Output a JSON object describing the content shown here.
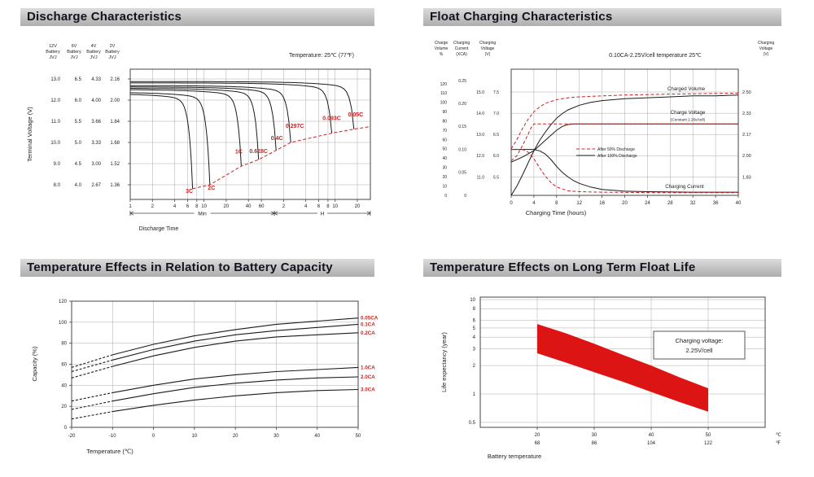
{
  "panels": [
    {
      "title": "Discharge Characteristics"
    },
    {
      "title": "Float Charging Characteristics"
    },
    {
      "title": "Temperature Effects in Relation to Battery Capacity"
    },
    {
      "title": "Temperature Effects on Long Term Float Life"
    }
  ],
  "chart_data": [
    {
      "id": "discharge-characteristics",
      "type": "line",
      "title": "Discharge Characteristics",
      "note": "Temperature: 25℃ (77℉)",
      "xlabel": "Discharge Time",
      "ylabel": "Terminal Voltage (V)",
      "x_scale": "log",
      "x_ticks_minutes": [
        1,
        2,
        4,
        6,
        8,
        10,
        20,
        40,
        60
      ],
      "x_ticks_hours": [
        2,
        4,
        6,
        8,
        10,
        20
      ],
      "x_span_labels": [
        "Min",
        "H"
      ],
      "y_axes": [
        {
          "header": [
            "12V",
            "Battery",
            "JVJ"
          ],
          "ticks": [
            "13.0",
            "12.0",
            "11.0",
            "10.0",
            "9.0",
            "8.0"
          ]
        },
        {
          "header": [
            "6V",
            "Battery",
            "JVJ"
          ],
          "ticks": [
            "6.5",
            "6.0",
            "5.5",
            "5.0",
            "4.5",
            "4.0"
          ]
        },
        {
          "header": [
            "4V",
            "Battery",
            "JVJ"
          ],
          "ticks": [
            "4.33",
            "4.00",
            "3.66",
            "3.33",
            "3.00",
            "2.67"
          ]
        },
        {
          "header": [
            "2V",
            "Battery",
            "JVJ"
          ],
          "ticks": [
            "2.16",
            "2.00",
            "1.84",
            "1.68",
            "1.52",
            "1.36"
          ]
        }
      ],
      "cell_tick_values": [
        2.16,
        2.0,
        1.84,
        1.68,
        1.52,
        1.36
      ],
      "series": [
        {
          "label": "3C",
          "end_minutes": 7,
          "end_v": 1.33,
          "start_v": 2.05
        },
        {
          "label": "2C",
          "end_minutes": 12,
          "end_v": 1.36,
          "start_v": 2.06
        },
        {
          "label": "1C",
          "end_minutes": 32,
          "end_v": 1.5,
          "start_v": 2.08
        },
        {
          "label": "0.628C",
          "end_minutes": 55,
          "end_v": 1.55,
          "start_v": 2.09
        },
        {
          "label": "0.4C",
          "end_minutes": 95,
          "end_v": 1.62,
          "start_v": 2.1
        },
        {
          "label": "0.297C",
          "end_minutes": 150,
          "end_v": 1.68,
          "start_v": 2.11
        },
        {
          "label": "0.093C",
          "end_minutes": 540,
          "end_v": 1.75,
          "start_v": 2.13
        },
        {
          "label": "0.05C",
          "end_minutes": 1080,
          "end_v": 1.78,
          "start_v": 2.14
        }
      ],
      "cutoff_locus_end_v": 1.8,
      "series_color": "#1a1a1a",
      "locus_color": "#cc2222"
    },
    {
      "id": "float-charging-characteristics",
      "type": "line",
      "title": "Float Charging Characteristics",
      "condition": "0.10CA-2.25V/cell  temperature 25℃",
      "xlabel": "Charging Time (hours)",
      "x_ticks": [
        0,
        4,
        8,
        12,
        16,
        20,
        24,
        28,
        32,
        36,
        40
      ],
      "left_axes": [
        {
          "header": [
            "Charge",
            "Volume",
            "%"
          ],
          "ticks": [
            120,
            110,
            100,
            90,
            80,
            70,
            60,
            50,
            40,
            30,
            20,
            10,
            0
          ]
        },
        {
          "header": [
            "Charging",
            "Current",
            "(XCA)"
          ],
          "ticks": [
            "0.25",
            "0.20",
            "0.15",
            "0.10",
            "0.05",
            "0"
          ]
        },
        {
          "header": [
            "Charging",
            "Voltage",
            "(V)"
          ],
          "ticks_12v": [
            "15.0",
            "14.0",
            "13.0",
            "12.0",
            "11.0"
          ],
          "ticks_6v": [
            "7.5",
            "7.0",
            "6.5",
            "6.0",
            "5.5"
          ]
        }
      ],
      "right_axis": {
        "header": [
          "Charging",
          "Voltage",
          "(V)"
        ],
        "ticks": [
          "2.50",
          "2.33",
          "2.17",
          "2.00",
          "1.83"
        ],
        "tick_values": [
          2.5,
          2.333,
          2.167,
          2.0,
          1.833
        ]
      },
      "legend": [
        {
          "label": "After  50% Discharge",
          "style": "dashed",
          "color": "#cc2222"
        },
        {
          "label": "After 100% Discharge",
          "style": "solid",
          "color": "#1a1a1a"
        }
      ],
      "curve_labels": {
        "charged_volume": "Charged Volume",
        "charge_voltage": "Charge Voltage",
        "charge_voltage_sub": "(Constant 2.25v/cell)",
        "charging_current": "Charging Current"
      },
      "series": [
        {
          "name": "charged-volume-after-100",
          "axis": "volume",
          "style": "solid",
          "points": [
            [
              0,
              0
            ],
            [
              1,
              10
            ],
            [
              2,
              22
            ],
            [
              3,
              35
            ],
            [
              4,
              48
            ],
            [
              5,
              59
            ],
            [
              6,
              68
            ],
            [
              7,
              76
            ],
            [
              8,
              83
            ],
            [
              9,
              88
            ],
            [
              10,
              92
            ],
            [
              12,
              97
            ],
            [
              14,
              100
            ],
            [
              16,
              102
            ],
            [
              20,
              104
            ],
            [
              24,
              105
            ],
            [
              28,
              106
            ],
            [
              32,
              107
            ],
            [
              36,
              107
            ],
            [
              40,
              108
            ]
          ]
        },
        {
          "name": "charged-volume-after-50",
          "axis": "volume",
          "style": "dashed",
          "points": [
            [
              0,
              50
            ],
            [
              1,
              60
            ],
            [
              2,
              72
            ],
            [
              3,
              82
            ],
            [
              4,
              90
            ],
            [
              5,
              95
            ],
            [
              6,
              99
            ],
            [
              8,
              103
            ],
            [
              10,
              105
            ],
            [
              12,
              106
            ],
            [
              16,
              107
            ],
            [
              20,
              108
            ],
            [
              28,
              109
            ],
            [
              40,
              110
            ]
          ]
        },
        {
          "name": "charge-voltage-after-100",
          "axis": "voltage",
          "style": "solid",
          "points": [
            [
              0,
              1.95
            ],
            [
              2,
              1.99
            ],
            [
              4,
              2.04
            ],
            [
              5,
              2.08
            ],
            [
              6,
              2.12
            ],
            [
              7,
              2.16
            ],
            [
              8,
              2.2
            ],
            [
              9,
              2.23
            ],
            [
              10,
              2.245
            ],
            [
              11,
              2.25
            ],
            [
              40,
              2.25
            ]
          ]
        },
        {
          "name": "charge-voltage-after-50",
          "axis": "voltage",
          "style": "dashed",
          "points": [
            [
              0,
              1.96
            ],
            [
              1,
              2.0
            ],
            [
              2,
              2.08
            ],
            [
              3,
              2.17
            ],
            [
              3.5,
              2.22
            ],
            [
              4,
              2.25
            ],
            [
              40,
              2.25
            ]
          ]
        },
        {
          "name": "charging-current-after-100",
          "axis": "current",
          "style": "solid",
          "points": [
            [
              0,
              0.1
            ],
            [
              4,
              0.1
            ],
            [
              5,
              0.097
            ],
            [
              6,
              0.09
            ],
            [
              7,
              0.078
            ],
            [
              8,
              0.063
            ],
            [
              9,
              0.05
            ],
            [
              10,
              0.04
            ],
            [
              11,
              0.032
            ],
            [
              12,
              0.026
            ],
            [
              14,
              0.018
            ],
            [
              16,
              0.013
            ],
            [
              20,
              0.009
            ],
            [
              24,
              0.008
            ],
            [
              32,
              0.007
            ],
            [
              40,
              0.007
            ]
          ]
        },
        {
          "name": "charging-current-after-50",
          "axis": "current",
          "style": "dashed",
          "points": [
            [
              0,
              0.1
            ],
            [
              2,
              0.1
            ],
            [
              3,
              0.094
            ],
            [
              4,
              0.08
            ],
            [
              5,
              0.06
            ],
            [
              6,
              0.042
            ],
            [
              7,
              0.028
            ],
            [
              8,
              0.018
            ],
            [
              10,
              0.01
            ],
            [
              12,
              0.008
            ],
            [
              16,
              0.007
            ],
            [
              24,
              0.006
            ],
            [
              40,
              0.006
            ]
          ]
        }
      ]
    },
    {
      "id": "temperature-capacity",
      "type": "line",
      "title": "Temperature Effects in Relation to Battery Capacity",
      "xlabel": "Temperature (℃)",
      "ylabel": "Capacity (%)",
      "x_ticks": [
        -20,
        -10,
        0,
        10,
        20,
        30,
        40,
        50
      ],
      "y_ticks": [
        0,
        20,
        40,
        60,
        80,
        100,
        120
      ],
      "x": [
        -20,
        -10,
        0,
        10,
        20,
        30,
        40,
        50
      ],
      "series": [
        {
          "label": "0.05CA",
          "y": [
            57,
            69,
            79,
            87,
            93,
            98,
            101,
            104
          ]
        },
        {
          "label": "0.1CA",
          "y": [
            53,
            64,
            74,
            82,
            88,
            92,
            95,
            98
          ]
        },
        {
          "label": "0.2CA",
          "y": [
            47,
            58,
            68,
            76,
            82,
            86,
            88,
            90
          ]
        },
        {
          "label": "1.0CA",
          "y": [
            25,
            33,
            40,
            46,
            50,
            53,
            55,
            57
          ]
        },
        {
          "label": "2.0CA",
          "y": [
            17,
            25,
            32,
            38,
            42,
            45,
            47,
            48
          ]
        },
        {
          "label": "3.0CA",
          "y": [
            8,
            15,
            21,
            26,
            30,
            33,
            35,
            36
          ]
        }
      ],
      "dashed_below": -10,
      "label_color": "#cc2222",
      "series_color": "#1a1a1a"
    },
    {
      "id": "temperature-float-life",
      "type": "area",
      "title": "Temperature Effects on Long Term Float Life",
      "xlabel": "Battery temperature",
      "ylabel": "Life expectancy (year)",
      "y_scale": "log",
      "y_ticks": [
        10,
        8,
        6,
        5,
        4,
        3,
        2,
        1,
        0.5
      ],
      "x_ticks_c": [
        20,
        30,
        40,
        50
      ],
      "x_ticks_f": [
        68,
        86,
        104,
        122
      ],
      "unit_c": "℃",
      "unit_f": "℉",
      "annotation": [
        "Charging voltage:",
        "2.25V/cell"
      ],
      "band_color": "#dd1414",
      "band": {
        "x": [
          20,
          25,
          30,
          35,
          40,
          45,
          50
        ],
        "upper": [
          5.5,
          4.4,
          3.4,
          2.6,
          2.0,
          1.5,
          1.15
        ],
        "lower": [
          2.7,
          2.15,
          1.7,
          1.35,
          1.05,
          0.82,
          0.65
        ]
      }
    }
  ]
}
